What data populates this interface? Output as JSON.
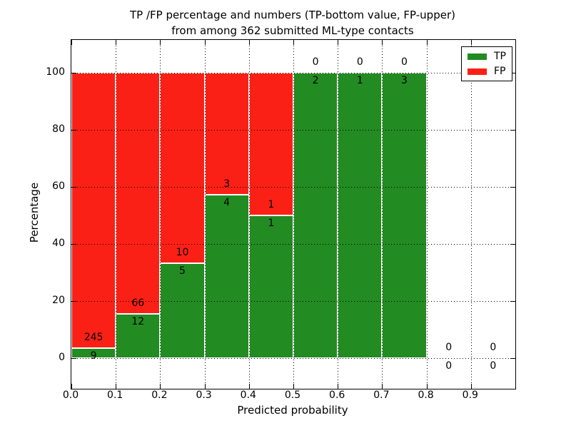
{
  "title": {
    "line1": "TP /FP percentage and numbers (TP-bottom value, FP-upper)",
    "line2": "from among 362 submitted ML-type contacts"
  },
  "chart_data": {
    "type": "bar",
    "stacked": true,
    "title": "TP /FP percentage and numbers (TP-bottom value, FP-upper) from among 362 submitted ML-type contacts",
    "xlabel": "Predicted probability",
    "ylabel": "Percentage",
    "x_tick_labels": [
      "0.0",
      "0.1",
      "0.2",
      "0.3",
      "0.4",
      "0.5",
      "0.6",
      "0.7",
      "0.8",
      "0.9"
    ],
    "x_tick_values": [
      0.0,
      0.1,
      0.2,
      0.3,
      0.4,
      0.5,
      0.6,
      0.7,
      0.8,
      0.9
    ],
    "y_tick_labels": [
      "0",
      "20",
      "40",
      "60",
      "80",
      "100"
    ],
    "y_tick_values": [
      0,
      20,
      40,
      60,
      80,
      100
    ],
    "xlim": [
      0.0,
      1.0
    ],
    "ylim": [
      -10.75,
      111.5
    ],
    "grid": true,
    "grid_style": "dotted",
    "total_contacts": 362,
    "colors": {
      "tp": "#228b22",
      "fp": "#fb2016",
      "edge": "#ffffff"
    },
    "legend": {
      "position": "upper right",
      "entries": [
        {
          "label": "TP",
          "color": "#228b22"
        },
        {
          "label": "FP",
          "color": "#fb2016"
        }
      ]
    },
    "bins": [
      {
        "x_start": 0.0,
        "x_end": 0.1,
        "tp": 9,
        "fp": 245
      },
      {
        "x_start": 0.1,
        "x_end": 0.2,
        "tp": 12,
        "fp": 66
      },
      {
        "x_start": 0.2,
        "x_end": 0.3,
        "tp": 5,
        "fp": 10
      },
      {
        "x_start": 0.3,
        "x_end": 0.4,
        "tp": 4,
        "fp": 3
      },
      {
        "x_start": 0.4,
        "x_end": 0.5,
        "tp": 1,
        "fp": 1
      },
      {
        "x_start": 0.5,
        "x_end": 0.6,
        "tp": 2,
        "fp": 0
      },
      {
        "x_start": 0.6,
        "x_end": 0.7,
        "tp": 1,
        "fp": 0
      },
      {
        "x_start": 0.7,
        "x_end": 0.8,
        "tp": 3,
        "fp": 0
      },
      {
        "x_start": 0.8,
        "x_end": 0.9,
        "tp": 0,
        "fp": 0
      },
      {
        "x_start": 0.9,
        "x_end": 1.0,
        "tp": 0,
        "fp": 0
      }
    ]
  }
}
